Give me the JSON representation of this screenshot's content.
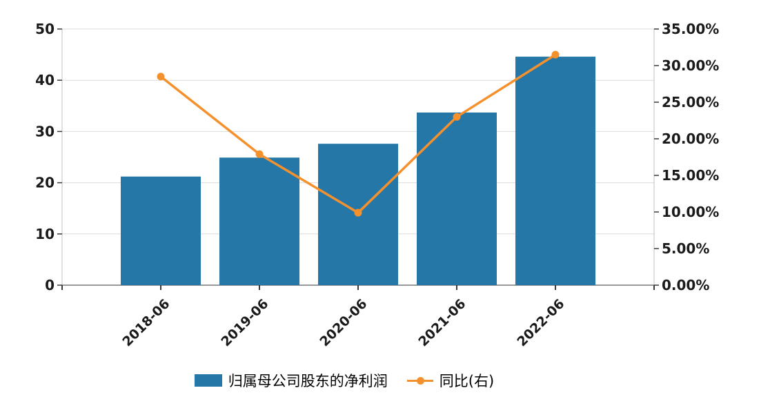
{
  "chart_data": {
    "type": "combo",
    "title": "",
    "categories": [
      "2018-06",
      "2019-06",
      "2020-06",
      "2021-06",
      "2022-06"
    ],
    "series": [
      {
        "name": "归属母公司股东的净利润",
        "type": "bar",
        "y_axis": "left",
        "color": "#2577a8",
        "values": [
          21.2,
          24.9,
          27.6,
          33.7,
          44.6
        ]
      },
      {
        "name": "同比(右)",
        "type": "line",
        "y_axis": "right",
        "color": "#f5912d",
        "values_pct": [
          28.5,
          17.9,
          9.9,
          23.0,
          31.5
        ]
      }
    ],
    "left_axis": {
      "min": 0,
      "max": 50,
      "step": 10,
      "tick_labels": [
        "0",
        "10",
        "20",
        "30",
        "40",
        "50"
      ]
    },
    "right_axis": {
      "min_pct": 0,
      "max_pct": 35,
      "step_pct": 5,
      "tick_labels": [
        "0.00%",
        "5.00%",
        "10.00%",
        "15.00%",
        "20.00%",
        "25.00%",
        "30.00%",
        "35.00%"
      ]
    },
    "grid": true,
    "legend_position": "bottom"
  },
  "styles": {
    "background": "#ffffff",
    "grid_color": "#dcdcdc",
    "side_axis_color": "#c2c2c2",
    "bottom_axis_color": "#999999",
    "tick_color": "#3a3a3a",
    "label_color": "#1a1a1a"
  }
}
